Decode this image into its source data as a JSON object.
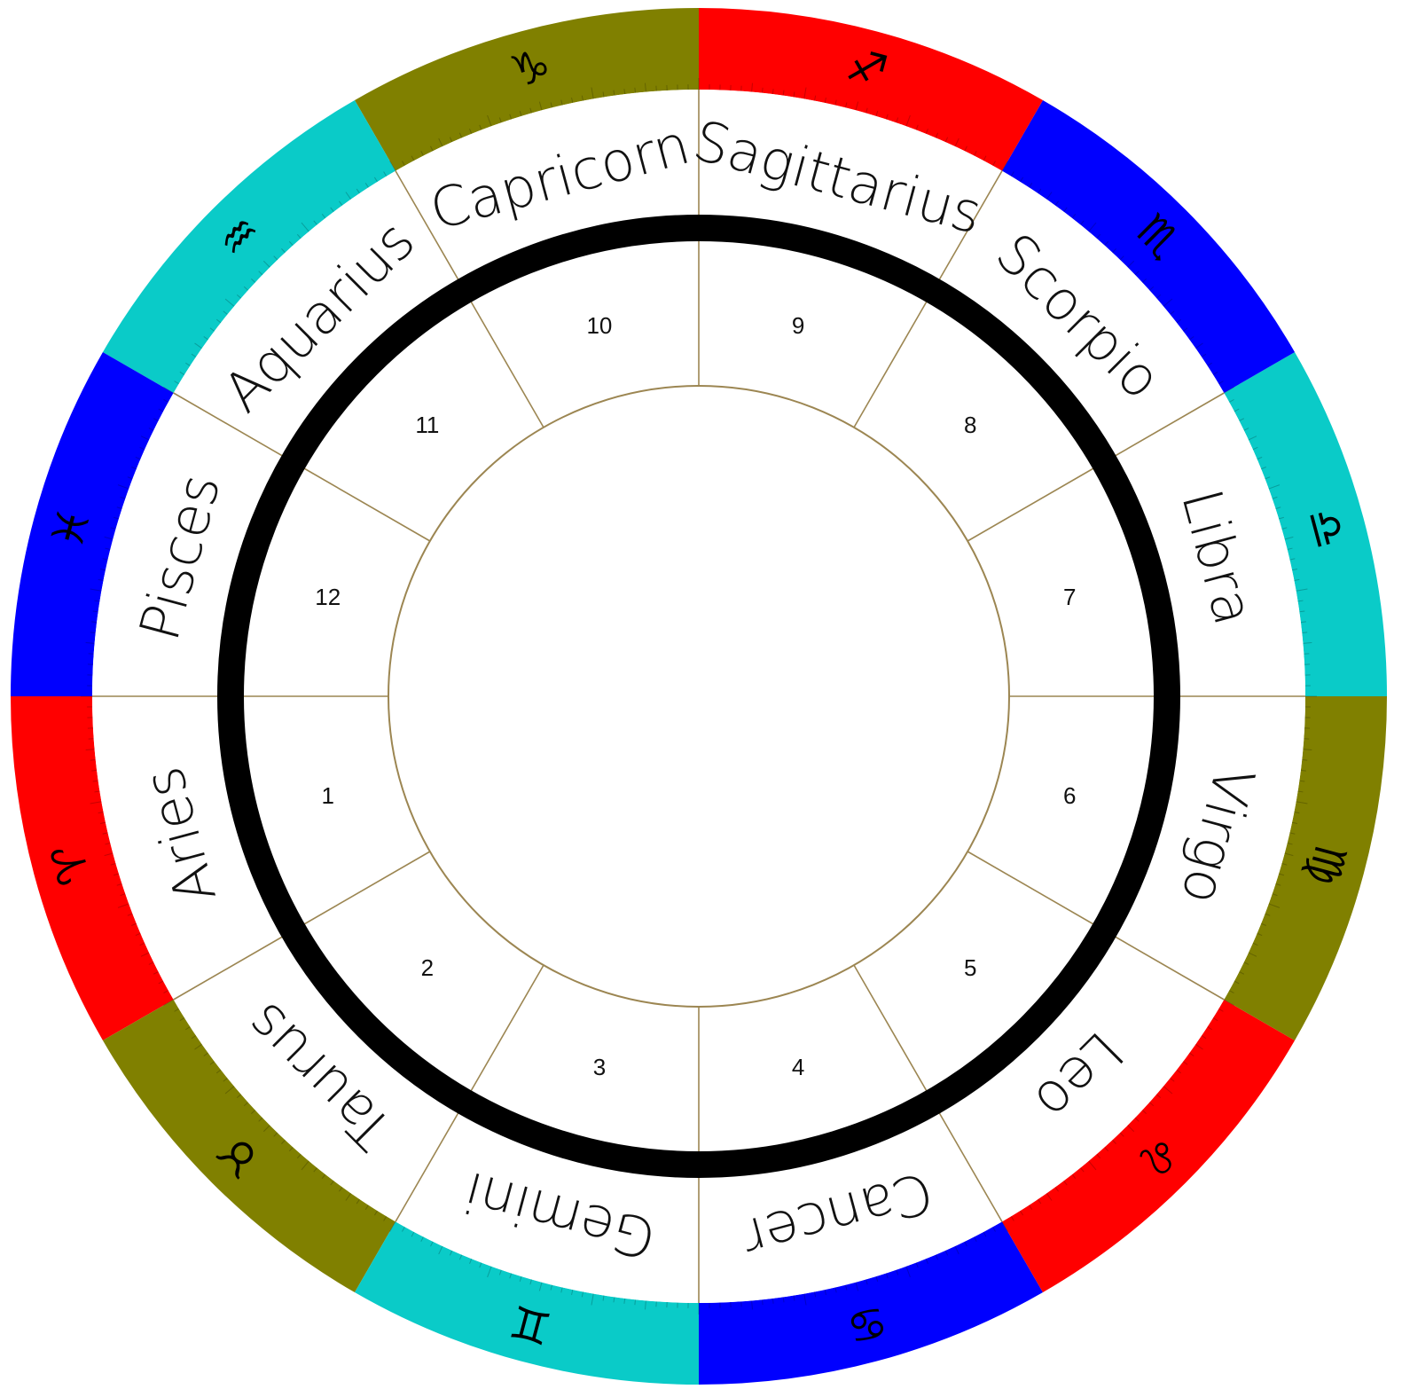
{
  "chart_wheel": {
    "signs": [
      {
        "name": "Aries",
        "glyph": "♈",
        "element": "fire"
      },
      {
        "name": "Taurus",
        "glyph": "♉",
        "element": "earth"
      },
      {
        "name": "Gemini",
        "glyph": "♊",
        "element": "air"
      },
      {
        "name": "Cancer",
        "glyph": "♋",
        "element": "water"
      },
      {
        "name": "Leo",
        "glyph": "♌",
        "element": "fire"
      },
      {
        "name": "Virgo",
        "glyph": "♍",
        "element": "earth"
      },
      {
        "name": "Libra",
        "glyph": "♎",
        "element": "air"
      },
      {
        "name": "Scorpio",
        "glyph": "♏",
        "element": "water"
      },
      {
        "name": "Sagittarius",
        "glyph": "♐",
        "element": "fire"
      },
      {
        "name": "Capricorn",
        "glyph": "♑",
        "element": "earth"
      },
      {
        "name": "Aquarius",
        "glyph": "♒",
        "element": "air"
      },
      {
        "name": "Pisces",
        "glyph": "♓",
        "element": "water"
      }
    ],
    "houses": [
      "1",
      "2",
      "3",
      "4",
      "5",
      "6",
      "7",
      "8",
      "9",
      "10",
      "11",
      "12"
    ],
    "element_colors": {
      "fire": "#ff0000",
      "earth": "#808000",
      "air": "#0acbc8",
      "water": "#0000ff"
    },
    "line_color": "#9c8652",
    "ring_color": "#000000"
  }
}
